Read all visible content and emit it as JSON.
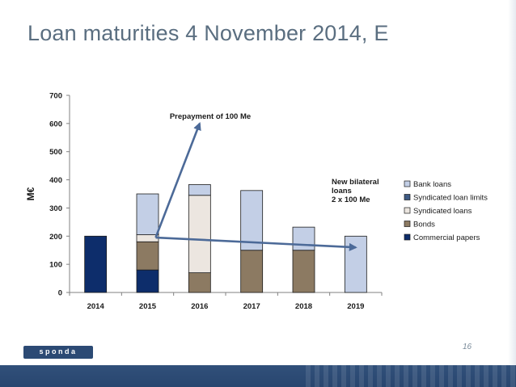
{
  "slide": {
    "title": "Loan maturities 4 November 2014, E",
    "page_number": "16",
    "logo_text": "sponda"
  },
  "colors": {
    "title": "#5a6e80",
    "commercial_papers": "#0d2d6b",
    "bonds": "#8c7a62",
    "syndicated_loans": "#ece6e0",
    "syndicated_loan_limits": "#3e5a84",
    "bank_loans": "#c3cfe6",
    "arrow": "#4c6a98",
    "footer": "#2c4a74"
  },
  "chart_data": {
    "type": "bar",
    "stacked": true,
    "categories": [
      "2014",
      "2015",
      "2016",
      "2017",
      "2018",
      "2019"
    ],
    "ylabel": "M€",
    "xlabel": "",
    "ylim": [
      0,
      700
    ],
    "yticks": [
      0,
      100,
      200,
      300,
      400,
      500,
      600,
      700
    ],
    "series": [
      {
        "name": "Commercial papers",
        "color": "#0d2d6b",
        "values": [
          200,
          80,
          0,
          0,
          0,
          0
        ]
      },
      {
        "name": "Bonds",
        "color": "#8c7a62",
        "values": [
          0,
          100,
          70,
          150,
          150,
          0
        ]
      },
      {
        "name": "Syndicated loans",
        "color": "#ece6e0",
        "values": [
          0,
          25,
          275,
          0,
          0,
          0
        ]
      },
      {
        "name": "Syndicated loan limits",
        "color": "#3e5a84",
        "values": [
          0,
          0,
          0,
          0,
          0,
          0
        ]
      },
      {
        "name": "Bank loans",
        "color": "#c3cfe6",
        "values": [
          0,
          145,
          38,
          212,
          82,
          200
        ]
      }
    ],
    "legend_order": [
      "Bank loans",
      "Syndicated loan limits",
      "Syndicated loans",
      "Bonds",
      "Commercial papers"
    ],
    "legend_position": "right",
    "grid": false,
    "annotations": [
      {
        "text_lines": [
          "Prepayment of 100 Me"
        ],
        "from": [
          "2015",
          195
        ],
        "to": [
          "2016",
          600
        ]
      },
      {
        "text_lines": [
          "New bilateral",
          "loans",
          "2 x 100 Me"
        ],
        "from": [
          "2015",
          195
        ],
        "to": [
          "2019",
          160
        ]
      }
    ]
  }
}
